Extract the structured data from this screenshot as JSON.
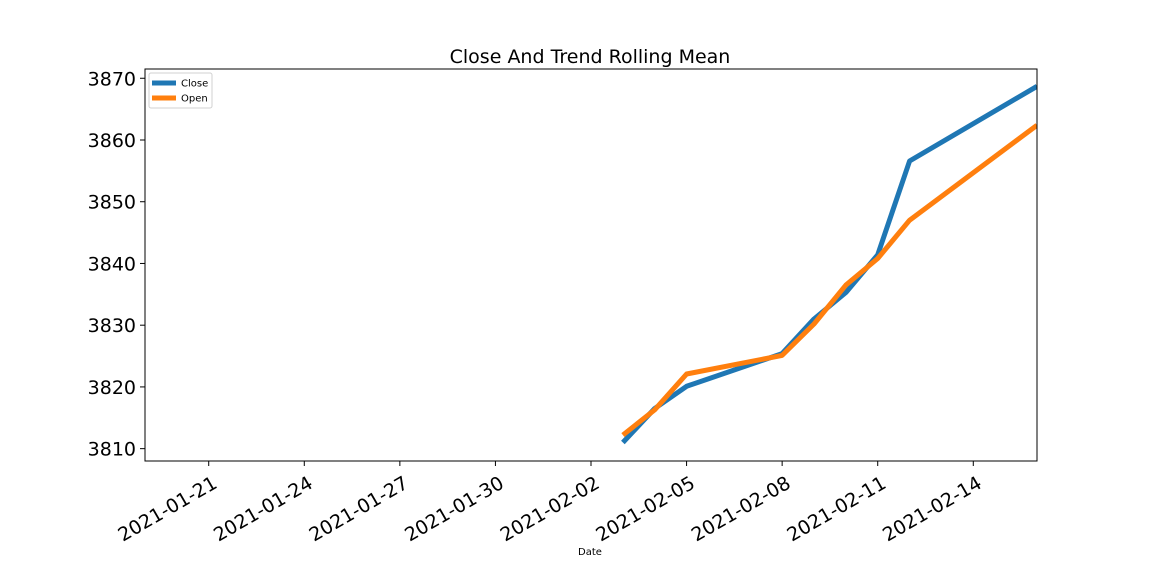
{
  "chart_data": {
    "type": "line",
    "title": "Close And Trend Rolling Mean",
    "xlabel": "Date",
    "ylabel": "",
    "x_type": "date",
    "xlim": [
      "2021-01-19",
      "2021-02-16"
    ],
    "ylim": [
      3808,
      3871.5
    ],
    "x_ticks": [
      "2021-01-21",
      "2021-01-24",
      "2021-01-27",
      "2021-01-30",
      "2021-02-02",
      "2021-02-05",
      "2021-02-08",
      "2021-02-11",
      "2021-02-14"
    ],
    "y_ticks": [
      3810,
      3820,
      3830,
      3840,
      3850,
      3860,
      3870
    ],
    "grid": false,
    "legend_position": "top-left",
    "series": [
      {
        "name": "Close",
        "color": "#1f77b4",
        "points": [
          {
            "x": "2021-02-03",
            "y": 3811.0
          },
          {
            "x": "2021-02-04",
            "y": 3816.5
          },
          {
            "x": "2021-02-05",
            "y": 3820.1
          },
          {
            "x": "2021-02-08",
            "y": 3825.4
          },
          {
            "x": "2021-02-09",
            "y": 3831.0
          },
          {
            "x": "2021-02-10",
            "y": 3835.3
          },
          {
            "x": "2021-02-11",
            "y": 3841.4
          },
          {
            "x": "2021-02-12",
            "y": 3856.6
          },
          {
            "x": "2021-02-16",
            "y": 3868.7
          }
        ]
      },
      {
        "name": "Open",
        "color": "#ff7f0e",
        "points": [
          {
            "x": "2021-02-03",
            "y": 3812.2
          },
          {
            "x": "2021-02-04",
            "y": 3816.3
          },
          {
            "x": "2021-02-05",
            "y": 3822.1
          },
          {
            "x": "2021-02-08",
            "y": 3825.1
          },
          {
            "x": "2021-02-09",
            "y": 3830.2
          },
          {
            "x": "2021-02-10",
            "y": 3836.5
          },
          {
            "x": "2021-02-11",
            "y": 3840.8
          },
          {
            "x": "2021-02-12",
            "y": 3847.0
          },
          {
            "x": "2021-02-16",
            "y": 3862.4
          }
        ]
      }
    ]
  }
}
